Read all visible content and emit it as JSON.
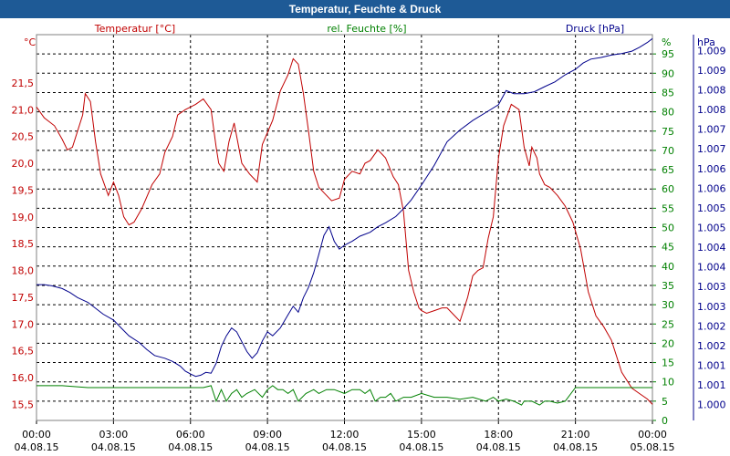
{
  "window": {
    "title": "Temperatur, Feuchte & Druck"
  },
  "chart_data": {
    "type": "line",
    "title": "Temperatur, Feuchte & Druck",
    "colors": {
      "temperature": "#c00000",
      "humidity": "#008000",
      "pressure": "#00008b",
      "grid": "#000000",
      "titlebar": "#1e5a96"
    },
    "axes": {
      "temperature": {
        "label": "Temperatur [°C]",
        "unit": "°C",
        "ylim": [
          15.2,
          22.4
        ],
        "ticks": [
          "15,5",
          "16,0",
          "16,5",
          "17,0",
          "17,5",
          "18,0",
          "18,5",
          "19,0",
          "19,5",
          "20,0",
          "20,5",
          "21,0",
          "21,5"
        ]
      },
      "humidity": {
        "label": "rel. Feuchte [%]",
        "unit": "%",
        "ylim": [
          0,
          100
        ],
        "ticks": [
          "0",
          "5",
          "10",
          "15",
          "20",
          "25",
          "30",
          "35",
          "40",
          "45",
          "50",
          "55",
          "60",
          "65",
          "70",
          "75",
          "80",
          "85",
          "90",
          "95"
        ]
      },
      "pressure": {
        "label": "Druck [hPa]",
        "unit": "hPa",
        "ylim": [
          0.9996,
          1.0094
        ],
        "ticks": [
          "1.000",
          "1.001",
          "1.001",
          "1.002",
          "1.002",
          "1.003",
          "1.003",
          "1.004",
          "1.004",
          "1.005",
          "1.005",
          "1.006",
          "1.006",
          "1.007",
          "1.007",
          "1.008",
          "1.008",
          "1.009",
          "1.009"
        ]
      },
      "x": {
        "range": [
          0,
          24
        ],
        "ticks": [
          {
            "time": "00:00",
            "date": "04.08.15"
          },
          {
            "time": "03:00",
            "date": "04.08.15"
          },
          {
            "time": "06:00",
            "date": "04.08.15"
          },
          {
            "time": "09:00",
            "date": "04.08.15"
          },
          {
            "time": "12:00",
            "date": "04.08.15"
          },
          {
            "time": "15:00",
            "date": "04.08.15"
          },
          {
            "time": "18:00",
            "date": "04.08.15"
          },
          {
            "time": "21:00",
            "date": "04.08.15"
          },
          {
            "time": "00:00",
            "date": "05.08.15"
          }
        ]
      }
    },
    "series": [
      {
        "name": "Temperatur",
        "axis": "temperature",
        "x": [
          0,
          0.3,
          0.7,
          1.0,
          1.2,
          1.4,
          1.8,
          1.9,
          2.1,
          2.3,
          2.5,
          2.8,
          3.0,
          3.2,
          3.4,
          3.6,
          3.8,
          4.1,
          4.5,
          4.8,
          5.0,
          5.3,
          5.5,
          5.8,
          6.0,
          6.2,
          6.5,
          6.8,
          7.0,
          7.1,
          7.3,
          7.5,
          7.7,
          7.8,
          8.0,
          8.3,
          8.6,
          8.8,
          9.2,
          9.5,
          9.8,
          10.0,
          10.2,
          10.4,
          10.6,
          10.8,
          11.0,
          11.2,
          11.5,
          11.8,
          12.0,
          12.3,
          12.6,
          12.8,
          13.0,
          13.3,
          13.6,
          13.9,
          14.1,
          14.3,
          14.5,
          14.7,
          14.9,
          15.0,
          15.2,
          15.5,
          15.8,
          16.0,
          16.3,
          16.5,
          16.8,
          17.0,
          17.2,
          17.4,
          17.6,
          17.8,
          18.0,
          18.2,
          18.5,
          18.8,
          19.0,
          19.2,
          19.3,
          19.5,
          19.6,
          19.8,
          20.0,
          20.3,
          20.6,
          20.9,
          21.2,
          21.5,
          21.8,
          22.1,
          22.4,
          22.8,
          23.2,
          23.5,
          23.8,
          24.0
        ],
        "values": [
          21.05,
          20.85,
          20.7,
          20.45,
          20.25,
          20.3,
          20.9,
          21.3,
          21.15,
          20.4,
          19.8,
          19.4,
          19.65,
          19.4,
          19.0,
          18.85,
          18.9,
          19.15,
          19.6,
          19.8,
          20.2,
          20.5,
          20.9,
          21.0,
          21.05,
          21.1,
          21.2,
          21.0,
          20.3,
          20.0,
          19.85,
          20.4,
          20.75,
          20.5,
          20.0,
          19.8,
          19.65,
          20.35,
          20.8,
          21.35,
          21.65,
          21.95,
          21.85,
          21.3,
          20.6,
          19.85,
          19.55,
          19.45,
          19.3,
          19.35,
          19.7,
          19.85,
          19.8,
          20.0,
          20.05,
          20.25,
          20.1,
          19.75,
          19.6,
          19.1,
          18.0,
          17.6,
          17.3,
          17.25,
          17.2,
          17.25,
          17.3,
          17.3,
          17.15,
          17.05,
          17.5,
          17.9,
          18.0,
          18.05,
          18.6,
          19.0,
          20.1,
          20.7,
          21.1,
          21.0,
          20.3,
          19.95,
          20.3,
          20.1,
          19.8,
          19.6,
          19.55,
          19.4,
          19.2,
          18.9,
          18.4,
          17.6,
          17.15,
          16.95,
          16.7,
          16.1,
          15.8,
          15.7,
          15.6,
          15.5
        ]
      },
      {
        "name": "rel. Feuchte",
        "axis": "humidity",
        "x": [
          0,
          0.5,
          1.0,
          2.0,
          3.0,
          4.0,
          5.0,
          6.0,
          6.5,
          6.8,
          7.0,
          7.2,
          7.4,
          7.6,
          7.8,
          8.0,
          8.2,
          8.5,
          8.8,
          9.0,
          9.2,
          9.4,
          9.6,
          9.8,
          10.0,
          10.2,
          10.5,
          10.8,
          11.0,
          11.3,
          11.6,
          12.0,
          12.3,
          12.6,
          12.8,
          13.0,
          13.2,
          13.4,
          13.6,
          13.8,
          14.0,
          14.3,
          14.6,
          15.0,
          15.5,
          16.0,
          16.5,
          17.0,
          17.5,
          17.8,
          18.0,
          18.3,
          18.6,
          18.9,
          19.0,
          19.3,
          19.6,
          19.8,
          20.0,
          20.3,
          20.6,
          21.0,
          21.5,
          22.0,
          23.0,
          24.0
        ],
        "values": [
          9,
          9,
          9,
          8.5,
          8.5,
          8.5,
          8.5,
          8.5,
          8.5,
          9,
          5,
          8,
          5,
          7,
          8,
          6,
          7,
          8,
          6,
          8,
          9,
          8,
          8,
          7,
          8,
          5,
          7,
          8,
          7,
          8,
          8,
          7,
          8,
          8,
          7,
          8,
          5,
          6,
          6,
          7,
          5,
          6,
          6,
          7,
          6,
          6,
          5.5,
          6,
          5,
          6,
          5,
          5.5,
          5,
          4,
          5,
          5,
          4,
          5,
          5,
          4.5,
          5,
          8.5,
          8.5,
          8.5,
          8.5,
          8.5
        ]
      },
      {
        "name": "Druck",
        "axis": "pressure",
        "x": [
          0,
          0.3,
          0.6,
          1.0,
          1.3,
          1.6,
          2.0,
          2.3,
          2.6,
          3.0,
          3.3,
          3.6,
          4.0,
          4.3,
          4.6,
          5.0,
          5.3,
          5.6,
          5.8,
          6.0,
          6.2,
          6.4,
          6.6,
          6.8,
          7.0,
          7.2,
          7.4,
          7.6,
          7.8,
          8.0,
          8.2,
          8.4,
          8.6,
          8.8,
          9.0,
          9.2,
          9.5,
          9.8,
          10.0,
          10.2,
          10.4,
          10.6,
          10.8,
          11.0,
          11.2,
          11.4,
          11.6,
          11.8,
          12.0,
          12.3,
          12.6,
          13.0,
          13.3,
          13.6,
          14.0,
          14.3,
          14.6,
          15.0,
          15.5,
          16.0,
          16.5,
          17.0,
          17.5,
          18.0,
          18.3,
          18.6,
          19.0,
          19.4,
          19.8,
          20.2,
          20.6,
          21.0,
          21.3,
          21.6,
          22.0,
          22.4,
          22.8,
          23.2,
          23.5,
          23.8,
          24.0
        ],
        "values": [
          1.00305,
          1.00305,
          1.00302,
          1.00295,
          1.00285,
          1.00272,
          1.0026,
          1.00245,
          1.0023,
          1.00215,
          1.00195,
          1.00175,
          1.00158,
          1.0014,
          1.00125,
          1.00118,
          1.0011,
          1.00098,
          1.00085,
          1.00078,
          1.00072,
          1.00075,
          1.00082,
          1.0008,
          1.00105,
          1.00148,
          1.00175,
          1.00195,
          1.00185,
          1.0016,
          1.00135,
          1.00118,
          1.00132,
          1.00162,
          1.00185,
          1.00175,
          1.00195,
          1.00228,
          1.0025,
          1.00235,
          1.00272,
          1.00298,
          1.00335,
          1.00382,
          1.0043,
          1.00452,
          1.00415,
          1.00395,
          1.00405,
          1.00415,
          1.00428,
          1.00438,
          1.00452,
          1.00462,
          1.00478,
          1.00498,
          1.0052,
          1.00558,
          1.00608,
          1.00668,
          1.00698,
          1.00722,
          1.00742,
          1.00762,
          1.00798,
          1.0079,
          1.0079,
          1.00795,
          1.00808,
          1.0082,
          1.00838,
          1.00852,
          1.00868,
          1.00878,
          1.00882,
          1.00888,
          1.00892,
          1.00898,
          1.00908,
          1.0092,
          1.0093
        ]
      }
    ]
  }
}
